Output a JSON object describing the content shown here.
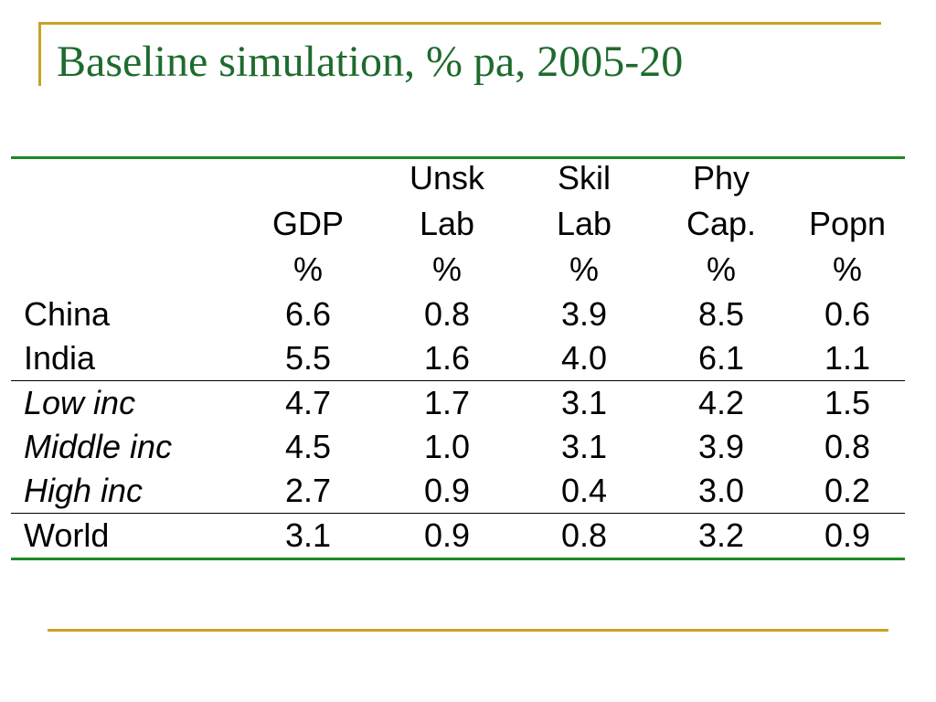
{
  "slide": {
    "title": "Baseline simulation, % pa, 2005-20"
  },
  "table": {
    "headers": [
      {
        "line1": "",
        "line2": "GDP",
        "line3": "%"
      },
      {
        "line1": "Unsk",
        "line2": "Lab",
        "line3": "%"
      },
      {
        "line1": "Skil",
        "line2": "Lab",
        "line3": "%"
      },
      {
        "line1": "Phy",
        "line2": "Cap.",
        "line3": "%"
      },
      {
        "line1": "",
        "line2": "Popn",
        "line3": "%"
      }
    ],
    "rows": [
      {
        "label": "China",
        "values": [
          "6.6",
          "0.8",
          "3.9",
          "8.5",
          "0.6"
        ]
      },
      {
        "label": "India",
        "values": [
          "5.5",
          "1.6",
          "4.0",
          "6.1",
          "1.1"
        ]
      },
      {
        "label": "Low inc",
        "values": [
          "4.7",
          "1.7",
          "3.1",
          "4.2",
          "1.5"
        ]
      },
      {
        "label": "Middle inc",
        "values": [
          "4.5",
          "1.0",
          "3.1",
          "3.9",
          "0.8"
        ]
      },
      {
        "label": "High inc",
        "values": [
          "2.7",
          "0.9",
          "0.4",
          "3.0",
          "0.2"
        ]
      },
      {
        "label": "World",
        "values": [
          "3.1",
          "0.9",
          "0.8",
          "3.2",
          "0.9"
        ]
      }
    ]
  }
}
